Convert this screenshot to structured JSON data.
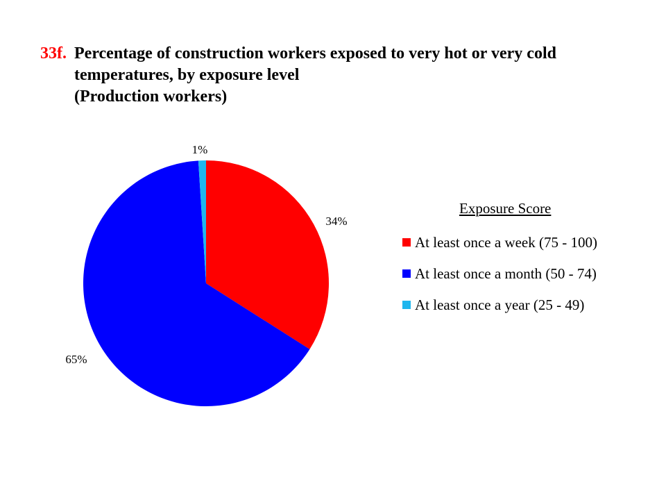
{
  "title": {
    "number": "33f.",
    "line1": "Percentage of construction workers exposed to very hot or very cold",
    "line2": "temperatures, by exposure level",
    "line3": "(Production workers)"
  },
  "chart_data": {
    "type": "pie",
    "legend_title": "Exposure Score",
    "legend_position": "right",
    "slices": [
      {
        "name": "At least once a week (75 - 100)",
        "value": 34,
        "label": "34%",
        "color": "#ff0000"
      },
      {
        "name": "At least once a month (50 - 74)",
        "value": 65,
        "label": "65%",
        "color": "#0000ff"
      },
      {
        "name": "At least once a year (25 - 49)",
        "value": 1,
        "label": "1%",
        "color": "#1fb6ee"
      }
    ]
  }
}
